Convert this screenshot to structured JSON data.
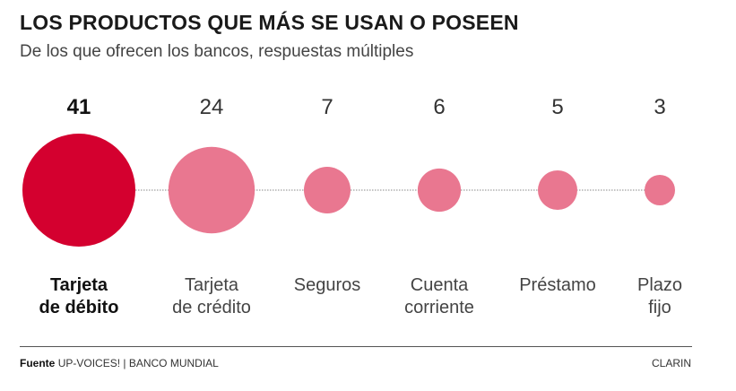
{
  "title": "LOS PRODUCTOS QUE MÁS SE USAN O POSEEN",
  "subtitle": "De los que ofrecen los bancos, respuestas múltiples",
  "chart_data": {
    "type": "bubble",
    "categories": [
      [
        "Tarjeta",
        "de débito"
      ],
      [
        "Tarjeta",
        "de crédito"
      ],
      [
        "Seguros"
      ],
      [
        "Cuenta",
        "corriente"
      ],
      [
        "Préstamo"
      ],
      [
        "Plazo",
        "fijo"
      ]
    ],
    "values": [
      41,
      24,
      7,
      6,
      5,
      3
    ],
    "highlight_index": 0,
    "colors": {
      "highlight": "#d4002f",
      "normal": "#e97790",
      "connector": "#888888"
    }
  },
  "footer": {
    "source_label": "Fuente",
    "source_text": "UP-VOICES! | BANCO MUNDIAL",
    "credit": "CLARIN"
  }
}
